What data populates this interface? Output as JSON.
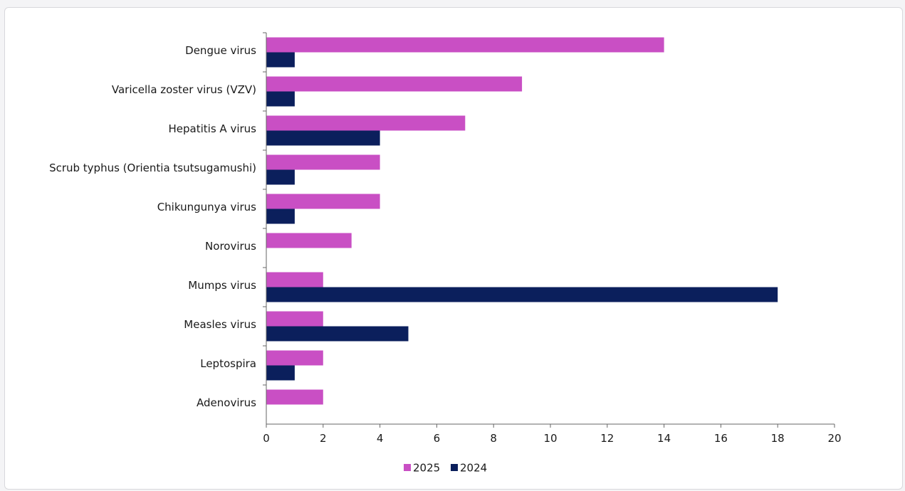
{
  "chart_data": {
    "type": "bar",
    "orientation": "horizontal",
    "categories": [
      "Dengue virus",
      "Varicella zoster virus (VZV)",
      "Hepatitis A virus",
      "Scrub typhus (Orientia tsutsugamushi)",
      "Chikungunya virus",
      "Norovirus",
      "Mumps virus",
      "Measles virus",
      "Leptospira",
      "Adenovirus"
    ],
    "series": [
      {
        "name": "2025",
        "color": "#c94fc4",
        "values": [
          14,
          9,
          7,
          4,
          4,
          3,
          2,
          2,
          2,
          2
        ]
      },
      {
        "name": "2024",
        "color": "#0b1f5c",
        "values": [
          1,
          1,
          4,
          1,
          1,
          0,
          18,
          5,
          1,
          0
        ]
      }
    ],
    "xlim": [
      0,
      20
    ],
    "xticks": [
      "0",
      "2",
      "4",
      "6",
      "8",
      "10",
      "12",
      "14",
      "16",
      "18",
      "20"
    ],
    "grid": false,
    "legend_position": "bottom-center",
    "title": "",
    "xlabel": "",
    "ylabel": ""
  }
}
